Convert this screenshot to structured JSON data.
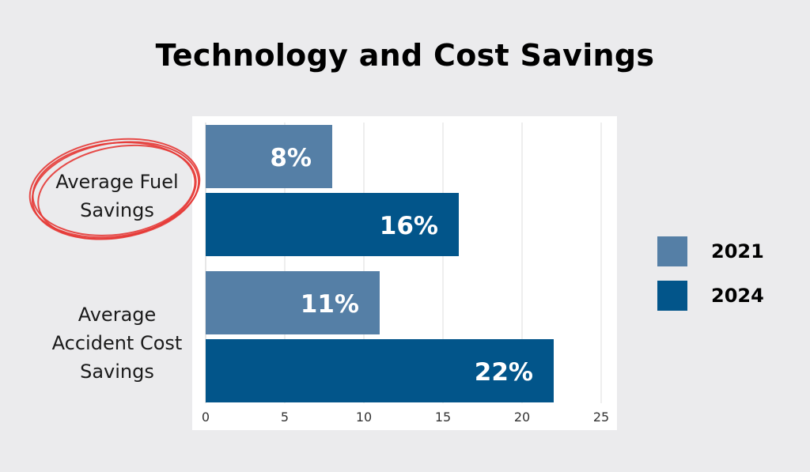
{
  "chart_data": {
    "type": "bar",
    "orientation": "horizontal",
    "title": "Technology and Cost Savings",
    "categories": [
      "Average Fuel Savings",
      "Average Accident Cost Savings"
    ],
    "series": [
      {
        "name": "2021",
        "color": "#557fa6",
        "values": [
          8,
          11
        ],
        "labels": [
          "8%",
          "11%"
        ]
      },
      {
        "name": "2024",
        "color": "#02558a",
        "values": [
          16,
          22
        ],
        "labels": [
          "16%",
          "22%"
        ]
      }
    ],
    "xlim": [
      0,
      25
    ],
    "xticks": [
      "0",
      "5",
      "10",
      "15",
      "20",
      "25"
    ],
    "grid": true,
    "legend": "right",
    "annotation": {
      "type": "hand-drawn circle",
      "target": "Average Fuel Savings",
      "color": "#e53935"
    }
  },
  "category_labels": {
    "fuel": {
      "line1": "Average Fuel",
      "line2": "Savings"
    },
    "accident": {
      "line1": "Average",
      "line2": "Accident Cost",
      "line3": "Savings"
    }
  }
}
